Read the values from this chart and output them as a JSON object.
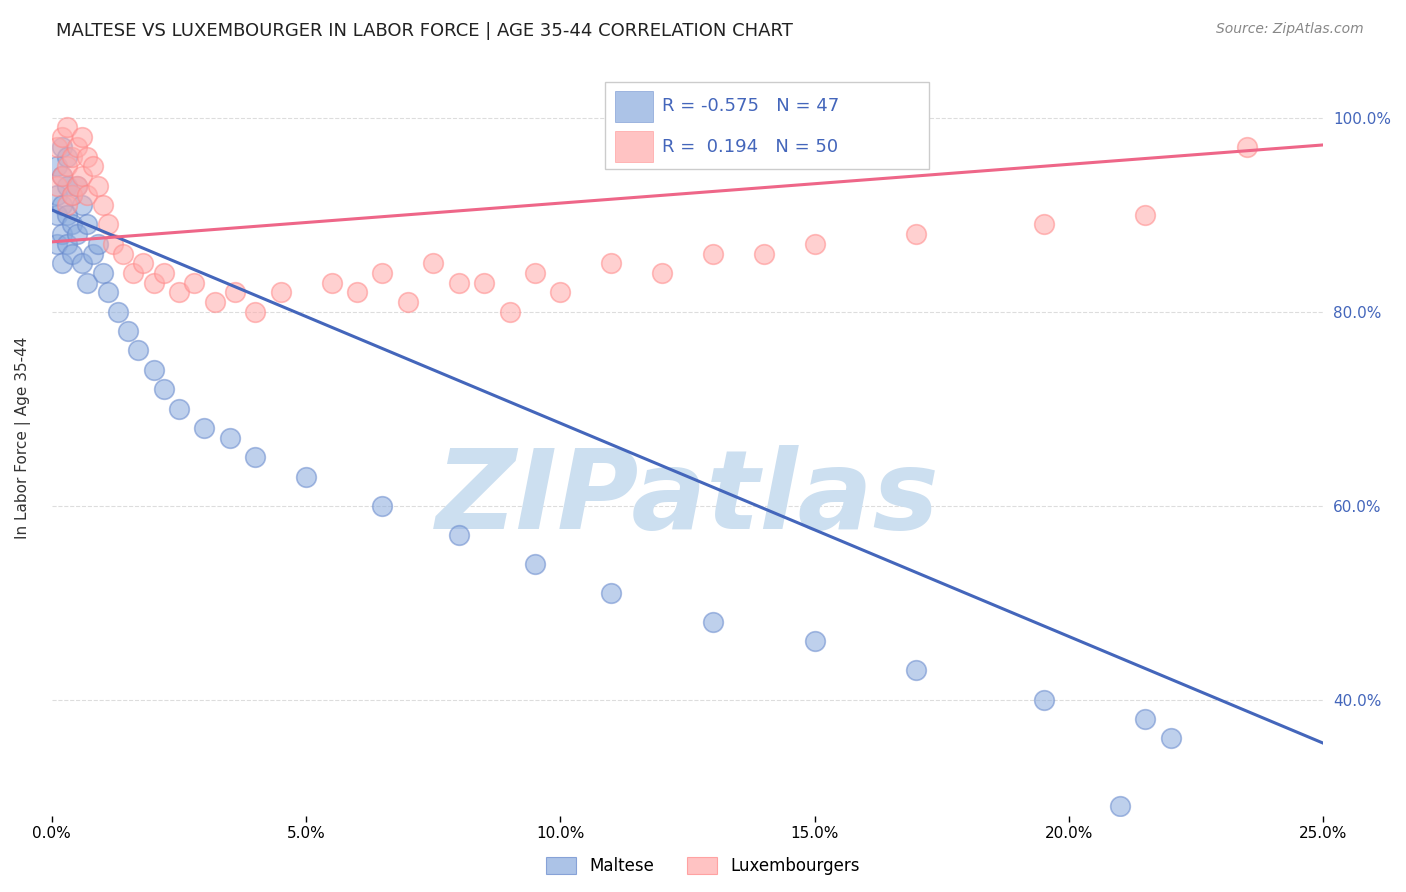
{
  "title": "MALTESE VS LUXEMBOURGER IN LABOR FORCE | AGE 35-44 CORRELATION CHART",
  "source_text": "Source: ZipAtlas.com",
  "ylabel": "In Labor Force | Age 35-44",
  "xlim": [
    0.0,
    0.25
  ],
  "ylim": [
    0.28,
    1.06
  ],
  "xtick_labels": [
    "0.0%",
    "5.0%",
    "10.0%",
    "15.0%",
    "20.0%",
    "25.0%"
  ],
  "xtick_values": [
    0.0,
    0.05,
    0.1,
    0.15,
    0.2,
    0.25
  ],
  "ytick_values": [
    0.4,
    0.6,
    0.8,
    1.0
  ],
  "right_ytick_labels": [
    "40.0%",
    "60.0%",
    "80.0%",
    "100.0%"
  ],
  "blue_color": "#89AADD",
  "pink_color": "#FFAAAA",
  "blue_edge_color": "#6688CC",
  "pink_edge_color": "#FF8888",
  "blue_line_color": "#4466BB",
  "pink_line_color": "#EE6688",
  "legend_r_blue": "-0.575",
  "legend_n_blue": "47",
  "legend_r_pink": "0.194",
  "legend_n_pink": "50",
  "watermark": "ZIPatlas",
  "watermark_color": "#CCDFF0",
  "blue_scatter_x": [
    0.001,
    0.001,
    0.001,
    0.001,
    0.002,
    0.002,
    0.002,
    0.002,
    0.002,
    0.003,
    0.003,
    0.003,
    0.003,
    0.004,
    0.004,
    0.004,
    0.005,
    0.005,
    0.006,
    0.006,
    0.007,
    0.007,
    0.008,
    0.009,
    0.01,
    0.011,
    0.013,
    0.015,
    0.017,
    0.02,
    0.022,
    0.025,
    0.03,
    0.035,
    0.04,
    0.05,
    0.065,
    0.08,
    0.095,
    0.11,
    0.13,
    0.15,
    0.17,
    0.195,
    0.215,
    0.22,
    0.21
  ],
  "blue_scatter_y": [
    0.95,
    0.92,
    0.9,
    0.87,
    0.97,
    0.94,
    0.91,
    0.88,
    0.85,
    0.96,
    0.93,
    0.9,
    0.87,
    0.92,
    0.89,
    0.86,
    0.93,
    0.88,
    0.91,
    0.85,
    0.89,
    0.83,
    0.86,
    0.87,
    0.84,
    0.82,
    0.8,
    0.78,
    0.76,
    0.74,
    0.72,
    0.7,
    0.68,
    0.67,
    0.65,
    0.63,
    0.6,
    0.57,
    0.54,
    0.51,
    0.48,
    0.46,
    0.43,
    0.4,
    0.38,
    0.36,
    0.29
  ],
  "pink_scatter_x": [
    0.001,
    0.001,
    0.002,
    0.002,
    0.003,
    0.003,
    0.003,
    0.004,
    0.004,
    0.005,
    0.005,
    0.006,
    0.006,
    0.007,
    0.007,
    0.008,
    0.009,
    0.01,
    0.011,
    0.012,
    0.014,
    0.016,
    0.018,
    0.02,
    0.022,
    0.025,
    0.028,
    0.032,
    0.036,
    0.04,
    0.045,
    0.055,
    0.065,
    0.075,
    0.085,
    0.095,
    0.11,
    0.13,
    0.15,
    0.17,
    0.195,
    0.215,
    0.235,
    0.06,
    0.07,
    0.08,
    0.09,
    0.1,
    0.12,
    0.14
  ],
  "pink_scatter_y": [
    0.97,
    0.93,
    0.98,
    0.94,
    0.99,
    0.95,
    0.91,
    0.96,
    0.92,
    0.97,
    0.93,
    0.98,
    0.94,
    0.96,
    0.92,
    0.95,
    0.93,
    0.91,
    0.89,
    0.87,
    0.86,
    0.84,
    0.85,
    0.83,
    0.84,
    0.82,
    0.83,
    0.81,
    0.82,
    0.8,
    0.82,
    0.83,
    0.84,
    0.85,
    0.83,
    0.84,
    0.85,
    0.86,
    0.87,
    0.88,
    0.89,
    0.9,
    0.97,
    0.82,
    0.81,
    0.83,
    0.8,
    0.82,
    0.84,
    0.86
  ],
  "blue_trendline_x": [
    0.0,
    0.25
  ],
  "blue_trendline_y": [
    0.905,
    0.355
  ],
  "pink_trendline_x": [
    0.0,
    0.25
  ],
  "pink_trendline_y": [
    0.872,
    0.972
  ],
  "legend_label_blue": "Maltese",
  "legend_label_pink": "Luxembourgers",
  "background_color": "#FFFFFF",
  "grid_color": "#DDDDDD"
}
